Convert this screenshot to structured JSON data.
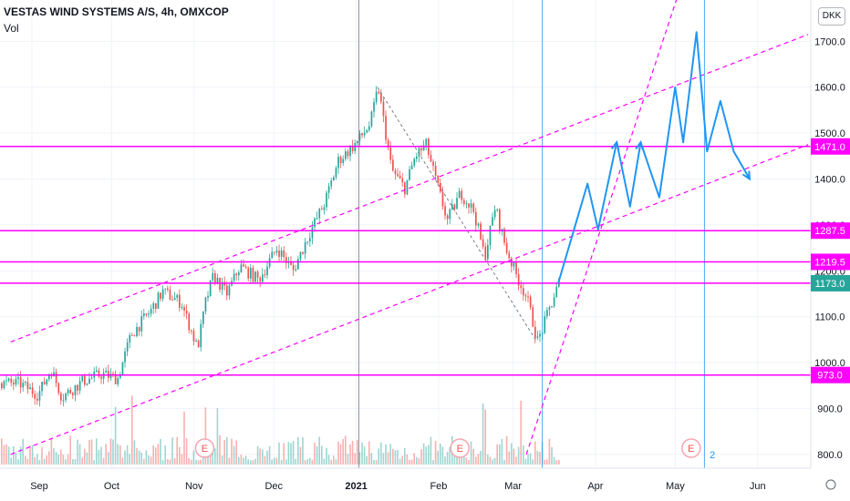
{
  "header": {
    "title": "VESTAS WIND SYSTEMS A/S, 4h, OMXCOP",
    "volume_label": "Vol",
    "currency": "DKK"
  },
  "colors": {
    "up": "#26a69a",
    "down": "#ef5350",
    "magenta": "#ff00ff",
    "projection": "#2196f3",
    "last_price_bg": "#26a69a",
    "grid": "#f0f3fa",
    "vline_gray": "#787b86",
    "vline_blue": "#2196f3"
  },
  "chart_data": {
    "type": "candlestick",
    "title": "VESTAS WIND SYSTEMS A/S, 4h, OMXCOP",
    "y_axis": {
      "ylim": [
        770,
        1790
      ],
      "ticks": [
        800,
        900,
        1000,
        1100,
        1200,
        1300,
        1400,
        1500,
        1600,
        1700
      ],
      "tick_labels": [
        "800.0",
        "900.0",
        "1000.0",
        "1100.0",
        "1200.0",
        "1300.0",
        "1400.0",
        "1500.0",
        "1600.0",
        "1700.0"
      ]
    },
    "x_axis": {
      "labels": [
        "Sep",
        "Oct",
        "Nov",
        "Dec",
        "2021",
        "Feb",
        "Mar",
        "Apr",
        "May",
        "Jun"
      ],
      "bold_label": "2021"
    },
    "price_path": [
      [
        "2020-08-27",
        955
      ],
      [
        "2020-09-03",
        930
      ],
      [
        "2020-09-08",
        985
      ],
      [
        "2020-09-12",
        925
      ],
      [
        "2020-09-20",
        960
      ],
      [
        "2020-09-27",
        975
      ],
      [
        "2020-10-03",
        965
      ],
      [
        "2020-10-08",
        1060
      ],
      [
        "2020-10-15",
        1110
      ],
      [
        "2020-10-20",
        1155
      ],
      [
        "2020-10-27",
        1130
      ],
      [
        "2020-11-02",
        1030
      ],
      [
        "2020-11-05",
        1130
      ],
      [
        "2020-11-08",
        1190
      ],
      [
        "2020-11-13",
        1150
      ],
      [
        "2020-11-18",
        1210
      ],
      [
        "2020-11-25",
        1180
      ],
      [
        "2020-12-02",
        1250
      ],
      [
        "2020-12-08",
        1200
      ],
      [
        "2020-12-14",
        1280
      ],
      [
        "2020-12-20",
        1350
      ],
      [
        "2020-12-25",
        1440
      ],
      [
        "2021-01-01",
        1480
      ],
      [
        "2021-01-06",
        1520
      ],
      [
        "2021-01-09",
        1600
      ],
      [
        "2021-01-14",
        1420
      ],
      [
        "2021-01-19",
        1380
      ],
      [
        "2021-01-23",
        1450
      ],
      [
        "2021-01-27",
        1475
      ],
      [
        "2021-01-31",
        1390
      ],
      [
        "2021-02-04",
        1310
      ],
      [
        "2021-02-09",
        1370
      ],
      [
        "2021-02-14",
        1330
      ],
      [
        "2021-02-18",
        1230
      ],
      [
        "2021-02-22",
        1340
      ],
      [
        "2021-02-26",
        1250
      ],
      [
        "2021-03-02",
        1190
      ],
      [
        "2021-03-06",
        1140
      ],
      [
        "2021-03-10",
        1045
      ],
      [
        "2021-03-14",
        1110
      ],
      [
        "2021-03-18",
        1175
      ]
    ],
    "volume_max": 1,
    "horizontal_levels": [
      {
        "value": 1471.0,
        "label": "1471.0"
      },
      {
        "value": 1287.5,
        "label": "1287.5"
      },
      {
        "value": 1219.5,
        "label": "1219.5"
      },
      {
        "value": 1173.0,
        "label": "1173.0",
        "last_price": true
      },
      {
        "value": 973.0,
        "label": "973.0"
      }
    ],
    "projection_path": [
      [
        "2021-03-18",
        1173
      ],
      [
        "2021-03-29",
        1390
      ],
      [
        "2021-04-02",
        1290
      ],
      [
        "2021-04-09",
        1480
      ],
      [
        "2021-04-14",
        1340
      ],
      [
        "2021-04-18",
        1480
      ],
      [
        "2021-04-25",
        1360
      ],
      [
        "2021-05-01",
        1600
      ],
      [
        "2021-05-04",
        1480
      ],
      [
        "2021-05-09",
        1720
      ],
      [
        "2021-05-13",
        1460
      ],
      [
        "2021-05-18",
        1570
      ],
      [
        "2021-05-23",
        1460
      ],
      [
        "2021-05-29",
        1400
      ]
    ],
    "channel_lines": [
      {
        "from": [
          "2020-08-24",
          1045
        ],
        "to": [
          "2021-06-20",
          1715
        ]
      },
      {
        "from": [
          "2020-08-24",
          800
        ],
        "to": [
          "2021-06-20",
          1475
        ]
      }
    ],
    "steep_line": {
      "from": [
        "2021-03-06",
        800
      ],
      "to": [
        "2021-05-02",
        1800
      ]
    },
    "trend_lines_gray": [
      {
        "from": [
          "2021-01-09",
          1600
        ],
        "to": [
          "2021-03-10",
          1045
        ]
      }
    ],
    "vertical_lines": [
      {
        "date": "2021-01-02",
        "color": "gray"
      },
      {
        "date": "2021-03-12",
        "color": "blue"
      },
      {
        "date": "2021-05-12",
        "color": "blue"
      }
    ],
    "earnings_markers": [
      {
        "date": "2020-11-05",
        "label": "E"
      },
      {
        "date": "2021-02-09",
        "label": "E"
      },
      {
        "date": "2021-05-07",
        "label": "E"
      }
    ],
    "numbered_markers": [
      {
        "date": "2021-05-15",
        "label": "2"
      }
    ]
  }
}
